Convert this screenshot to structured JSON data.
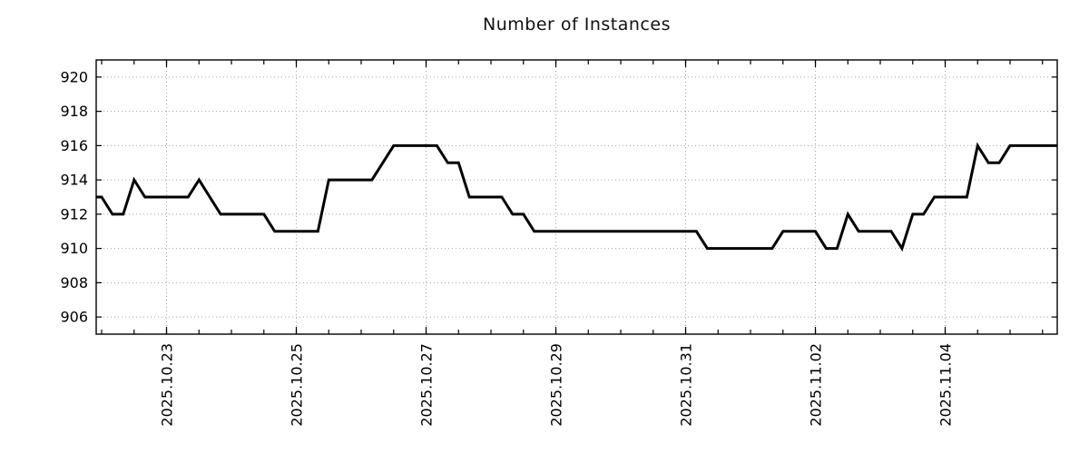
{
  "page": {
    "background": "#ffffff"
  },
  "chart_data": {
    "type": "line",
    "title": "Number of Instances",
    "xlabel": "",
    "ylabel": "",
    "legend_position": "none",
    "grid": true,
    "line_color": "#000000",
    "grid_color": "#a3a3a3",
    "axis_color": "#000000",
    "text_color": "#000000",
    "ylim": [
      905,
      921
    ],
    "y_ticks": [
      906,
      908,
      910,
      912,
      914,
      916,
      918,
      920
    ],
    "x_domain_days": [
      -1.084,
      13.727
    ],
    "x_major_ticks": [
      {
        "label": "2025.10.23",
        "day": 0
      },
      {
        "label": "2025.10.25",
        "day": 2
      },
      {
        "label": "2025.10.27",
        "day": 4
      },
      {
        "label": "2025.10.29",
        "day": 6
      },
      {
        "label": "2025.10.31",
        "day": 8
      },
      {
        "label": "2025.11.02",
        "day": 10
      },
      {
        "label": "2025.11.04",
        "day": 12
      }
    ],
    "x_minor_tick_step_days": 0.5,
    "x_minor_tick_range_days": [
      -1.0,
      13.5
    ],
    "series": [
      {
        "name": "instances",
        "start_day": -1.16667,
        "step_days": 0.16667,
        "values": [
          913,
          913,
          912,
          912,
          914,
          913,
          913,
          913,
          913,
          913,
          914,
          913,
          912,
          912,
          912,
          912,
          912,
          911,
          911,
          911,
          911,
          911,
          914,
          914,
          914,
          914,
          914,
          915,
          916,
          916,
          916,
          916,
          916,
          915,
          915,
          913,
          913,
          913,
          913,
          912,
          912,
          911,
          911,
          911,
          911,
          911,
          911,
          911,
          911,
          911,
          911,
          911,
          911,
          911,
          911,
          911,
          911,
          910,
          910,
          910,
          910,
          910,
          910,
          910,
          911,
          911,
          911,
          911,
          910,
          910,
          912,
          911,
          911,
          911,
          911,
          910,
          912,
          912,
          913,
          913,
          913,
          913,
          916,
          915,
          915,
          916,
          916,
          916,
          916,
          916,
          916
        ]
      }
    ]
  }
}
